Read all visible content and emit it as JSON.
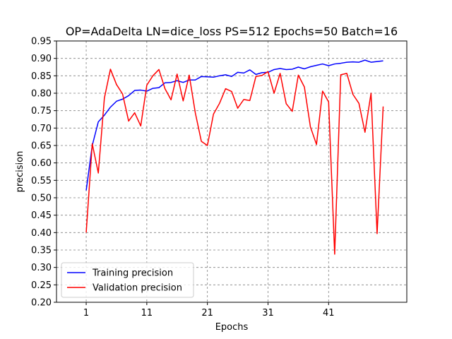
{
  "chart_data": {
    "type": "line",
    "title": "OP=AdaDelta LN=dice_loss PS=512 Epochs=50 Batch=16",
    "xlabel": "Epochs",
    "ylabel": "precision",
    "xlim": [
      -3.9,
      53.9
    ],
    "ylim": [
      0.2,
      0.95
    ],
    "x_ticks": [
      1,
      11,
      21,
      31,
      41
    ],
    "y_ticks": [
      0.2,
      0.25,
      0.3,
      0.35,
      0.4,
      0.45,
      0.5,
      0.55,
      0.6,
      0.65,
      0.7,
      0.75,
      0.8,
      0.85,
      0.9,
      0.95
    ],
    "grid": true,
    "legend_position": "lower-left",
    "x": [
      1,
      2,
      3,
      4,
      5,
      6,
      7,
      8,
      9,
      10,
      11,
      12,
      13,
      14,
      15,
      16,
      17,
      18,
      19,
      20,
      21,
      22,
      23,
      24,
      25,
      26,
      27,
      28,
      29,
      30,
      31,
      32,
      33,
      34,
      35,
      36,
      37,
      38,
      39,
      40,
      41,
      42,
      43,
      44,
      45,
      46,
      47,
      48,
      49,
      50
    ],
    "series": [
      {
        "name": "Training precision",
        "color": "#0000ff",
        "values": [
          0.521,
          0.65,
          0.718,
          0.737,
          0.76,
          0.777,
          0.783,
          0.793,
          0.808,
          0.809,
          0.806,
          0.814,
          0.816,
          0.83,
          0.831,
          0.836,
          0.831,
          0.838,
          0.838,
          0.848,
          0.847,
          0.846,
          0.85,
          0.853,
          0.848,
          0.86,
          0.858,
          0.867,
          0.854,
          0.859,
          0.86,
          0.868,
          0.871,
          0.868,
          0.869,
          0.875,
          0.87,
          0.876,
          0.88,
          0.884,
          0.879,
          0.884,
          0.886,
          0.889,
          0.89,
          0.889,
          0.895,
          0.889,
          0.891,
          0.893
        ]
      },
      {
        "name": "Validation precision",
        "color": "#ff0000",
        "values": [
          0.4,
          0.655,
          0.571,
          0.786,
          0.869,
          0.825,
          0.798,
          0.72,
          0.744,
          0.706,
          0.823,
          0.85,
          0.868,
          0.813,
          0.781,
          0.855,
          0.778,
          0.852,
          0.744,
          0.662,
          0.65,
          0.74,
          0.771,
          0.813,
          0.805,
          0.757,
          0.782,
          0.779,
          0.848,
          0.851,
          0.862,
          0.8,
          0.857,
          0.77,
          0.748,
          0.852,
          0.818,
          0.703,
          0.653,
          0.806,
          0.775,
          0.338,
          0.853,
          0.857,
          0.797,
          0.771,
          0.688,
          0.8,
          0.397,
          0.762
        ]
      }
    ]
  }
}
